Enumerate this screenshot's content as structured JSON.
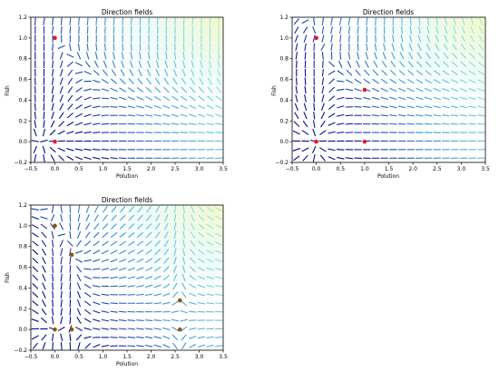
{
  "chart_data": [
    {
      "type": "quiver",
      "title": "Direction fields",
      "xlabel": "Polution",
      "ylabel": "Fish",
      "xlim": [
        -0.5,
        3.5
      ],
      "ylim": [
        -0.2,
        1.2
      ],
      "xticks": [
        "−0.5",
        "0.0",
        "0.5",
        "1.0",
        "1.5",
        "2.0",
        "2.5",
        "3.0",
        "3.5"
      ],
      "yticks": [
        "−0.2",
        "0.0",
        "0.2",
        "0.4",
        "0.6",
        "0.8",
        "1.0",
        "1.2"
      ],
      "grid": false,
      "arrow_colormap": [
        "#0a0a8c",
        "#3a8fd6",
        "#7fe0d8",
        "#e8f27a"
      ],
      "equilibria_color": "#e8192c",
      "equilibria": [
        {
          "x": 0.0,
          "y": 1.0
        },
        {
          "x": 0.0,
          "y": 0.0
        }
      ]
    },
    {
      "type": "quiver",
      "title": "Direction fields",
      "xlabel": "Polution",
      "ylabel": "Fish",
      "xlim": [
        -0.5,
        3.5
      ],
      "ylim": [
        -0.2,
        1.2
      ],
      "xticks": [
        "−0.5",
        "0.0",
        "0.5",
        "1.0",
        "1.5",
        "2.0",
        "2.5",
        "3.0",
        "3.5"
      ],
      "yticks": [
        "−0.2",
        "0.0",
        "0.2",
        "0.4",
        "0.6",
        "0.8",
        "1.0",
        "1.2"
      ],
      "grid": false,
      "arrow_colormap": [
        "#0a0a8c",
        "#3a8fd6",
        "#7fe0d8",
        "#e8f27a"
      ],
      "equilibria_color": "#e8192c",
      "equilibria": [
        {
          "x": 0.0,
          "y": 1.0
        },
        {
          "x": 0.0,
          "y": 0.0
        },
        {
          "x": 1.0,
          "y": 0.5
        },
        {
          "x": 1.0,
          "y": 0.0
        }
      ]
    },
    {
      "type": "quiver",
      "title": "Direction fields",
      "xlabel": "Polution",
      "ylabel": "Fish",
      "xlim": [
        -0.5,
        3.5
      ],
      "ylim": [
        -0.2,
        1.2
      ],
      "xticks": [
        "−0.5",
        "0.0",
        "0.5",
        "1.0",
        "1.5",
        "2.0",
        "2.5",
        "3.0",
        "3.5"
      ],
      "yticks": [
        "−0.2",
        "0.0",
        "0.2",
        "0.4",
        "0.6",
        "0.8",
        "1.0",
        "1.2"
      ],
      "grid": false,
      "arrow_colormap": [
        "#0a0a8c",
        "#3a8fd6",
        "#7fe0d8",
        "#e8f27a"
      ],
      "equilibria_color": "#8a5a00",
      "equilibria": [
        {
          "x": 0.0,
          "y": 1.0
        },
        {
          "x": 0.35,
          "y": 0.72
        },
        {
          "x": 2.6,
          "y": 0.28
        },
        {
          "x": 0.0,
          "y": 0.0
        },
        {
          "x": 0.35,
          "y": 0.0
        },
        {
          "x": 2.6,
          "y": 0.0
        }
      ]
    }
  ]
}
